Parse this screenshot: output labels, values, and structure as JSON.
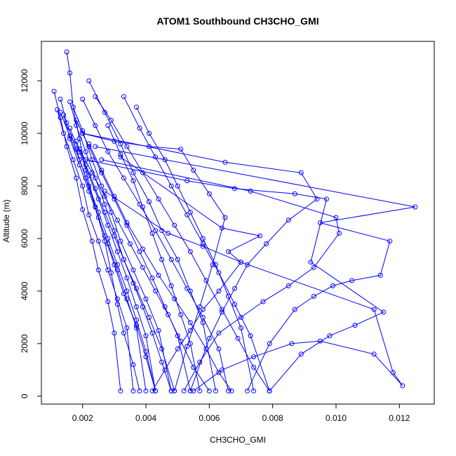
{
  "chart_data": {
    "type": "scatter",
    "title": "ATOM1 Southbound CH3CHO_GMI",
    "xlabel": "CH3CHO_GMI",
    "ylabel": "Altitude (m)",
    "xlim": [
      0.0007,
      0.0131
    ],
    "ylim": [
      -300,
      13500
    ],
    "x_ticks": [
      0.002,
      0.004,
      0.006,
      0.008,
      0.01,
      0.012
    ],
    "x_tick_labels": [
      "0.002",
      "0.004",
      "0.006",
      "0.008",
      "0.010",
      "0.012"
    ],
    "y_ticks": [
      0,
      2000,
      4000,
      6000,
      8000,
      10000,
      12000
    ],
    "y_tick_labels": [
      "0",
      "2000",
      "4000",
      "6000",
      "8000",
      "10000",
      "12000"
    ],
    "grid": false,
    "legend": "none",
    "series_color": "#0000ff",
    "series": [
      {
        "x": [
          0.0015,
          0.0016,
          0.0017,
          0.0019,
          0.0021,
          0.0024,
          0.0027,
          0.0029,
          0.0031,
          0.0033,
          0.0036,
          0.0038
        ],
        "y": [
          13100,
          12300,
          11000,
          9800,
          8600,
          7200,
          5900,
          4700,
          3500,
          2400,
          1200,
          200
        ]
      },
      {
        "x": [
          0.0011,
          0.0013,
          0.0015,
          0.0018,
          0.002,
          0.0023,
          0.0025,
          0.0028,
          0.003,
          0.0032
        ],
        "y": [
          11600,
          10600,
          9500,
          8300,
          7100,
          5900,
          4800,
          3600,
          2400,
          200
        ]
      },
      {
        "x": [
          0.0013,
          0.0015,
          0.0018,
          0.0021,
          0.0024,
          0.0027,
          0.003,
          0.0033,
          0.0037,
          0.004,
          0.0043
        ],
        "y": [
          11300,
          10400,
          9400,
          8300,
          7200,
          6100,
          5000,
          3900,
          2700,
          1500,
          200
        ]
      },
      {
        "x": [
          0.0017,
          0.002,
          0.0023,
          0.0026,
          0.0029,
          0.0032,
          0.0036,
          0.004,
          0.0044,
          0.0048
        ],
        "y": [
          11000,
          10100,
          9000,
          8000,
          7000,
          5900,
          4800,
          3700,
          2500,
          200
        ]
      },
      {
        "x": [
          0.0012,
          0.0014,
          0.0017,
          0.002,
          0.0022,
          0.0025,
          0.0028,
          0.0031,
          0.0034,
          0.0036
        ],
        "y": [
          10900,
          10000,
          9000,
          8000,
          6900,
          5900,
          4800,
          3700,
          2600,
          200
        ]
      },
      {
        "x": [
          0.0018,
          0.0022,
          0.0026,
          0.003,
          0.0034,
          0.0038,
          0.0042,
          0.0046,
          0.005,
          0.0054
        ],
        "y": [
          10500,
          9500,
          8500,
          7500,
          6500,
          5500,
          4500,
          3400,
          2300,
          200
        ]
      },
      {
        "x": [
          0.0022,
          0.0027,
          0.0032,
          0.0036,
          0.0041,
          0.0045,
          0.005,
          0.0054,
          0.0058,
          0.0062
        ],
        "y": [
          12000,
          10800,
          9600,
          8500,
          7400,
          6300,
          5200,
          4000,
          2800,
          200
        ]
      },
      {
        "x": [
          0.0016,
          0.0018,
          0.0021,
          0.0024,
          0.0027,
          0.003,
          0.0033,
          0.0037,
          0.0041,
          0.0045,
          0.0049
        ],
        "y": [
          11200,
          10300,
          9300,
          8300,
          7300,
          6300,
          5200,
          4100,
          3000,
          1800,
          200
        ]
      },
      {
        "x": [
          0.002,
          0.0024,
          0.0028,
          0.0033,
          0.0038,
          0.0043,
          0.0048,
          0.0053,
          0.0058,
          0.0063,
          0.0066
        ],
        "y": [
          11300,
          10300,
          9300,
          8300,
          7300,
          6300,
          5200,
          4100,
          3000,
          1800,
          200
        ]
      },
      {
        "x": [
          0.0014,
          0.0016,
          0.0019,
          0.0022,
          0.0025,
          0.0028,
          0.0031,
          0.0034,
          0.0037,
          0.004
        ],
        "y": [
          10700,
          9800,
          8800,
          7800,
          6800,
          5800,
          4800,
          3700,
          2600,
          200
        ]
      },
      {
        "x": [
          0.0037,
          0.0041,
          0.0046,
          0.005,
          0.0054,
          0.0058,
          0.0062,
          0.0066,
          0.007,
          0.0074
        ],
        "y": [
          11000,
          10000,
          9000,
          8000,
          7000,
          6000,
          5000,
          3800,
          2600,
          200
        ]
      },
      {
        "x": [
          0.0024,
          0.0029,
          0.0034,
          0.0039,
          0.0044,
          0.0049,
          0.0054,
          0.0059,
          0.0064,
          0.0069,
          0.0074,
          0.0079
        ],
        "y": [
          11400,
          10500,
          9500,
          8500,
          7500,
          6500,
          5500,
          4400,
          3300,
          2200,
          1100,
          200
        ]
      },
      {
        "x": [
          0.0033,
          0.0038,
          0.0043,
          0.0048,
          0.0053,
          0.0058,
          0.0063,
          0.0068,
          0.0073,
          0.0079
        ],
        "y": [
          11400,
          10200,
          9100,
          8000,
          6900,
          5800,
          4700,
          3500,
          2300,
          200
        ]
      },
      {
        "x": [
          0.0016,
          0.0019,
          0.0022,
          0.0025,
          0.0028,
          0.0031,
          0.0034,
          0.0037,
          0.004,
          0.0043
        ],
        "y": [
          10200,
          9300,
          8400,
          7500,
          6500,
          5500,
          4500,
          3400,
          2300,
          200
        ]
      },
      {
        "x": [
          0.002,
          0.0065,
          0.0089,
          0.0094,
          0.0085,
          0.0078,
          0.0072,
          0.0068,
          0.0064,
          0.006,
          0.0054
        ],
        "y": [
          10000,
          8900,
          8500,
          7500,
          6700,
          5800,
          5000,
          4100,
          3200,
          2200,
          200
        ]
      },
      {
        "x": [
          0.0024,
          0.0125,
          0.0095,
          0.0117,
          0.0114,
          0.0105,
          0.0099,
          0.0093,
          0.0087,
          0.0079,
          0.0072
        ],
        "y": [
          9500,
          7200,
          6600,
          5900,
          4600,
          4400,
          4200,
          3800,
          3300,
          2000,
          200
        ]
      },
      {
        "x": [
          0.0021,
          0.0053,
          0.0068,
          0.0087,
          0.0097,
          0.0092,
          0.0115,
          0.0106,
          0.0098,
          0.0089,
          0.0079
        ],
        "y": [
          9000,
          8200,
          7900,
          7700,
          7500,
          5100,
          3200,
          2700,
          2300,
          1600,
          200
        ]
      },
      {
        "x": [
          0.0026,
          0.0073,
          0.01,
          0.0101,
          0.0093,
          0.0085,
          0.0077,
          0.007,
          0.0063,
          0.0057,
          0.0052
        ],
        "y": [
          9000,
          7800,
          6800,
          6200,
          4900,
          4200,
          3600,
          3000,
          2400,
          1300,
          200
        ]
      },
      {
        "x": [
          0.0032,
          0.0064,
          0.0076,
          0.0066,
          0.007,
          0.0063,
          0.0058,
          0.0054,
          0.005,
          0.0046,
          0.0042
        ],
        "y": [
          9100,
          6400,
          6100,
          5500,
          5100,
          4000,
          3300,
          2500,
          1800,
          1000,
          200
        ]
      },
      {
        "x": [
          0.0027,
          0.0047,
          0.0058,
          0.007,
          0.0112,
          0.0118,
          0.0121,
          0.0112,
          0.0095,
          0.0086,
          0.0074,
          0.0064,
          0.0055
        ],
        "y": [
          7800,
          6200,
          5700,
          5100,
          3300,
          900,
          400,
          1600,
          2100,
          2000,
          1500,
          1000,
          200
        ]
      },
      {
        "x": [
          0.0022,
          0.0026,
          0.003,
          0.0034,
          0.0039,
          0.0044,
          0.0049,
          0.0054,
          0.0059,
          0.0063,
          0.0067
        ],
        "y": [
          9600,
          8600,
          7600,
          6600,
          5600,
          4600,
          3700,
          2800,
          1800,
          900,
          200
        ]
      },
      {
        "x": [
          0.0018,
          0.0021,
          0.0024,
          0.0027,
          0.003,
          0.0033,
          0.0036,
          0.0039,
          0.0042,
          0.0045,
          0.0048
        ],
        "y": [
          9700,
          8800,
          7900,
          7000,
          6100,
          5200,
          4300,
          3400,
          2400,
          1300,
          200
        ]
      },
      {
        "x": [
          0.002,
          0.003,
          0.0041,
          0.0051,
          0.0055,
          0.006,
          0.0065,
          0.0061,
          0.0057,
          0.0053,
          0.0049
        ],
        "y": [
          10000,
          9700,
          9500,
          9400,
          8600,
          7700,
          6800,
          5000,
          3400,
          1900,
          200
        ]
      },
      {
        "x": [
          0.0028,
          0.0032,
          0.0036,
          0.0039,
          0.0042,
          0.0045,
          0.0048,
          0.0051,
          0.0054,
          0.0057
        ],
        "y": [
          10300,
          9200,
          8200,
          7200,
          6200,
          5200,
          4200,
          3100,
          2000,
          200
        ]
      },
      {
        "x": [
          0.0019,
          0.0023,
          0.0027,
          0.0031,
          0.0035,
          0.0039,
          0.0043,
          0.0047,
          0.0051,
          0.0055,
          0.006
        ],
        "y": [
          9400,
          8500,
          7600,
          6700,
          5800,
          4900,
          4000,
          3100,
          2100,
          1100,
          200
        ]
      },
      {
        "x": [
          0.0013,
          0.0016,
          0.0019,
          0.0022,
          0.0025,
          0.0028,
          0.0031,
          0.0034,
          0.0037,
          0.004,
          0.0043
        ],
        "y": [
          10800,
          9900,
          9000,
          8000,
          7000,
          6000,
          5000,
          4000,
          2900,
          1700,
          200
        ]
      }
    ]
  }
}
